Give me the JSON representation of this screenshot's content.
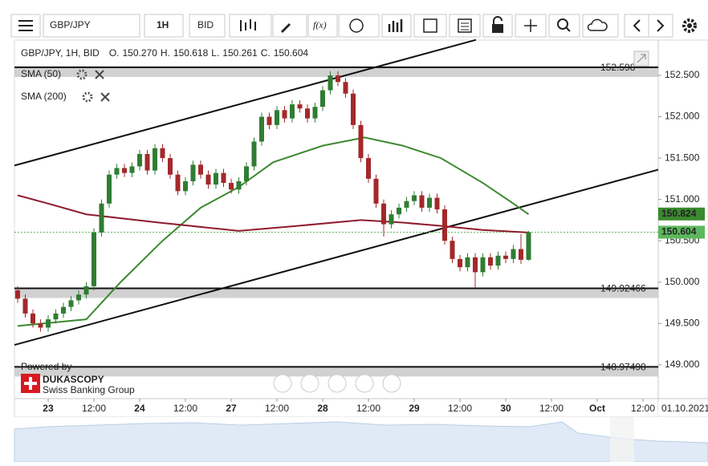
{
  "toolbar": {
    "symbol": "GBP/JPY",
    "interval": "1H",
    "price_side": "BID",
    "function_button": "f(x)"
  },
  "branding": {
    "powered_by": "Powered by",
    "name": "DUKASCOPY",
    "tagline": "Swiss Banking Group"
  },
  "chart_data": {
    "type": "candlestick",
    "title": "GBP/JPY, 1H, BID",
    "summary": {
      "labels": [
        "O.",
        "H.",
        "L.",
        "C."
      ],
      "values": [
        150.27,
        150.618,
        150.261,
        150.604
      ],
      "value_labels": [
        "150.270",
        "150.618",
        "150.261",
        "150.604"
      ]
    },
    "colors": {
      "up": "#2f7d32",
      "down": "#a3282b"
    },
    "x": [
      -8,
      -6,
      -4,
      -2,
      0,
      2,
      4,
      6,
      8,
      10,
      12,
      14,
      16,
      18,
      20,
      22,
      24,
      26,
      28,
      30,
      32,
      34,
      36,
      38,
      40,
      42,
      44,
      46,
      48,
      50,
      52,
      54,
      56,
      58,
      60,
      62,
      64,
      66,
      68,
      70,
      72,
      74,
      76,
      78,
      80,
      82,
      84,
      86,
      88,
      90,
      92,
      94,
      96,
      98,
      100,
      102,
      104,
      106,
      108,
      110,
      112,
      114,
      116,
      118,
      120,
      122,
      124,
      126
    ],
    "open": [
      149.9,
      149.8,
      149.62,
      149.5,
      149.45,
      149.55,
      149.62,
      149.7,
      149.78,
      149.85,
      149.95,
      150.6,
      150.95,
      151.3,
      151.38,
      151.32,
      151.4,
      151.55,
      151.35,
      151.62,
      151.5,
      151.3,
      151.1,
      151.22,
      151.42,
      151.3,
      151.18,
      151.32,
      151.2,
      151.12,
      151.22,
      151.4,
      151.7,
      152.0,
      151.9,
      152.08,
      151.98,
      152.15,
      152.1,
      151.98,
      152.12,
      152.32,
      152.5,
      152.42,
      152.28,
      151.9,
      151.5,
      151.25,
      150.95,
      150.7,
      150.82,
      150.9,
      150.98,
      151.05,
      150.9,
      151.02,
      150.88,
      150.5,
      150.28,
      150.18,
      150.3,
      150.12,
      150.3,
      150.2,
      150.32,
      150.28,
      150.4,
      150.27
    ],
    "high": [
      149.95,
      149.85,
      149.67,
      149.55,
      149.6,
      149.67,
      149.75,
      149.83,
      149.9,
      150.0,
      150.65,
      151.0,
      151.35,
      151.43,
      151.43,
      151.45,
      151.6,
      151.6,
      151.67,
      151.67,
      151.55,
      151.35,
      151.27,
      151.47,
      151.47,
      151.35,
      151.37,
      151.37,
      151.25,
      151.27,
      151.45,
      151.75,
      152.05,
      152.05,
      152.13,
      152.13,
      152.2,
      152.2,
      152.15,
      152.17,
      152.37,
      152.55,
      152.55,
      152.47,
      152.33,
      151.95,
      151.55,
      151.3,
      151.0,
      150.87,
      150.95,
      151.03,
      151.1,
      151.1,
      151.07,
      151.07,
      150.93,
      150.55,
      150.33,
      150.35,
      150.35,
      150.35,
      150.35,
      150.37,
      150.37,
      150.45,
      150.58,
      150.618
    ],
    "low": [
      149.75,
      149.57,
      149.45,
      149.4,
      149.4,
      149.5,
      149.57,
      149.65,
      149.73,
      149.8,
      149.9,
      150.55,
      150.9,
      151.25,
      151.27,
      151.27,
      151.35,
      151.3,
      151.3,
      151.45,
      151.25,
      151.05,
      151.05,
      151.17,
      151.25,
      151.13,
      151.13,
      151.15,
      151.07,
      151.07,
      151.17,
      151.35,
      151.65,
      151.85,
      151.85,
      151.93,
      151.93,
      152.05,
      151.93,
      151.93,
      152.07,
      152.27,
      152.37,
      152.23,
      151.85,
      151.45,
      151.2,
      150.9,
      150.55,
      150.65,
      150.77,
      150.85,
      150.93,
      150.85,
      150.85,
      150.83,
      150.45,
      150.23,
      150.13,
      150.13,
      149.93,
      150.07,
      150.15,
      150.15,
      150.23,
      150.23,
      150.22,
      150.261
    ],
    "close": [
      149.8,
      149.62,
      149.5,
      149.45,
      149.55,
      149.62,
      149.7,
      149.78,
      149.85,
      149.95,
      150.6,
      150.95,
      151.3,
      151.38,
      151.32,
      151.4,
      151.55,
      151.35,
      151.62,
      151.5,
      151.3,
      151.1,
      151.22,
      151.42,
      151.3,
      151.18,
      151.32,
      151.2,
      151.12,
      151.22,
      151.4,
      151.7,
      152.0,
      151.9,
      152.08,
      151.98,
      152.15,
      152.1,
      151.98,
      152.12,
      152.32,
      152.5,
      152.42,
      152.28,
      151.9,
      151.5,
      151.25,
      150.95,
      150.7,
      150.82,
      150.9,
      150.98,
      151.05,
      150.9,
      151.02,
      150.88,
      150.5,
      150.28,
      150.18,
      150.3,
      150.12,
      150.3,
      150.2,
      150.32,
      150.28,
      150.4,
      150.27,
      150.604
    ],
    "xlim": [
      -8.84,
      160
    ],
    "xticks": [
      {
        "value": 0,
        "label": "23"
      },
      {
        "value": 12,
        "label": "12:00"
      },
      {
        "value": 24,
        "label": "24"
      },
      {
        "value": 36,
        "label": "12:00"
      },
      {
        "value": 48,
        "label": "27"
      },
      {
        "value": 60,
        "label": "12:00"
      },
      {
        "value": 72,
        "label": "28"
      },
      {
        "value": 84,
        "label": "12:00"
      },
      {
        "value": 96,
        "label": "29"
      },
      {
        "value": 108,
        "label": "12:00"
      },
      {
        "value": 120,
        "label": "30"
      },
      {
        "value": 132,
        "label": "12:00"
      },
      {
        "value": 144,
        "label": "Oct"
      },
      {
        "value": 156,
        "label": "12:00"
      }
    ],
    "ylim": [
      148.591,
      152.927
    ],
    "yticks": [
      {
        "value": 152.5,
        "label": "152.500"
      },
      {
        "value": 152,
        "label": "152.000"
      },
      {
        "value": 151.5,
        "label": "151.500"
      },
      {
        "value": 151,
        "label": "151.000"
      },
      {
        "value": 150.5,
        "label": "150.500"
      },
      {
        "value": 150,
        "label": "150.000"
      },
      {
        "value": 149.5,
        "label": "149.500"
      },
      {
        "value": 149,
        "label": "149.000"
      }
    ],
    "overlays": [
      {
        "name": "SMA (50)",
        "color": "#3b8a2e",
        "x": [
          -8,
          10,
          19,
          30,
          40,
          50,
          59,
          72,
          83,
          93,
          103,
          114,
          122,
          126
        ],
        "values": [
          149.47,
          149.55,
          150.0,
          150.5,
          150.9,
          151.15,
          151.45,
          151.65,
          151.75,
          151.65,
          151.5,
          151.2,
          150.95,
          150.82
        ]
      },
      {
        "name": "SMA (200)",
        "color": "#8e1b2c",
        "x": [
          -8,
          0,
          10,
          29,
          50,
          63,
          82,
          93,
          103,
          114,
          126
        ],
        "values": [
          151.05,
          150.95,
          150.82,
          150.72,
          150.62,
          150.67,
          150.75,
          150.72,
          150.68,
          150.63,
          150.6
        ]
      }
    ],
    "trendlines": [
      {
        "x": [
          -8.84,
          112.2
        ],
        "y": [
          151.41,
          152.93
        ]
      },
      {
        "x": [
          -8.84,
          160
        ],
        "y": [
          149.24,
          151.36
        ]
      }
    ],
    "levels": [
      152.598,
      149.92466,
      148.97498
    ],
    "price_tags": [
      {
        "value": 150.824,
        "color": "#3b8a2e"
      },
      {
        "value": 150.604,
        "color": "#5cb85c"
      }
    ],
    "date_tag": "01.10.2021"
  }
}
